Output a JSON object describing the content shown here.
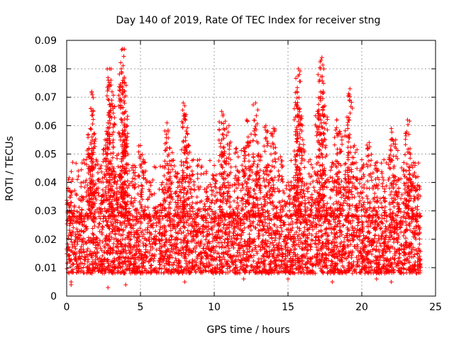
{
  "chart_data": {
    "type": "scatter",
    "title": "Day 140 of 2019, Rate Of TEC Index for receiver stng",
    "xlabel": "GPS time / hours",
    "ylabel": "ROTI / TECUs",
    "xlim": [
      0,
      25
    ],
    "ylim": [
      0,
      0.09
    ],
    "x_ticks": [
      0,
      5,
      10,
      15,
      20,
      25
    ],
    "x_tick_labels": [
      "0",
      "5",
      "10",
      "15",
      "20",
      "25"
    ],
    "y_ticks": [
      0,
      0.01,
      0.02,
      0.03,
      0.04,
      0.05,
      0.06,
      0.07,
      0.08,
      0.09
    ],
    "y_tick_labels": [
      "0",
      "0.01",
      "0.02",
      "0.03",
      "0.04",
      "0.05",
      "0.06",
      "0.07",
      "0.08",
      "0.09"
    ],
    "grid": true,
    "marker": "+",
    "marker_color": "#ff0000",
    "data_x_range_hours": [
      0,
      24
    ],
    "bulk_range": [
      0.008,
      0.028
    ],
    "series": [
      {
        "name": "ROTI",
        "points": [
          [
            0.1,
            0.038
          ],
          [
            0.2,
            0.037
          ],
          [
            0.3,
            0.005
          ],
          [
            0.5,
            0.03
          ],
          [
            1.0,
            0.035
          ],
          [
            1.5,
            0.052
          ],
          [
            1.6,
            0.059
          ],
          [
            1.7,
            0.072
          ],
          [
            1.8,
            0.065
          ],
          [
            2.0,
            0.048
          ],
          [
            2.3,
            0.045
          ],
          [
            2.6,
            0.055
          ],
          [
            2.8,
            0.061
          ],
          [
            2.9,
            0.08
          ],
          [
            3.0,
            0.076
          ],
          [
            3.1,
            0.067
          ],
          [
            3.3,
            0.042
          ],
          [
            3.5,
            0.05
          ],
          [
            3.7,
            0.08
          ],
          [
            3.8,
            0.087
          ],
          [
            3.9,
            0.077
          ],
          [
            4.0,
            0.065
          ],
          [
            4.1,
            0.06
          ],
          [
            4.0,
            0.004
          ],
          [
            4.5,
            0.046
          ],
          [
            5.0,
            0.053
          ],
          [
            5.2,
            0.048
          ],
          [
            5.5,
            0.028
          ],
          [
            6.0,
            0.03
          ],
          [
            6.5,
            0.04
          ],
          [
            6.8,
            0.061
          ],
          [
            7.0,
            0.052
          ],
          [
            7.5,
            0.043
          ],
          [
            7.9,
            0.068
          ],
          [
            8.0,
            0.067
          ],
          [
            8.2,
            0.057
          ],
          [
            8.5,
            0.044
          ],
          [
            9.0,
            0.048
          ],
          [
            9.5,
            0.038
          ],
          [
            10.0,
            0.046
          ],
          [
            10.5,
            0.065
          ],
          [
            10.6,
            0.064
          ],
          [
            11.0,
            0.06
          ],
          [
            11.5,
            0.052
          ],
          [
            12.0,
            0.052
          ],
          [
            12.2,
            0.062
          ],
          [
            12.5,
            0.057
          ],
          [
            12.8,
            0.068
          ],
          [
            13.0,
            0.05
          ],
          [
            13.5,
            0.06
          ],
          [
            13.7,
            0.046
          ],
          [
            14.0,
            0.059
          ],
          [
            14.5,
            0.049
          ],
          [
            15.0,
            0.04
          ],
          [
            15.5,
            0.063
          ],
          [
            15.6,
            0.072
          ],
          [
            15.7,
            0.08
          ],
          [
            15.8,
            0.066
          ],
          [
            16.0,
            0.055
          ],
          [
            16.5,
            0.048
          ],
          [
            17.0,
            0.065
          ],
          [
            17.2,
            0.08
          ],
          [
            17.3,
            0.084
          ],
          [
            17.5,
            0.067
          ],
          [
            18.0,
            0.047
          ],
          [
            18.3,
            0.062
          ],
          [
            18.5,
            0.058
          ],
          [
            19.0,
            0.063
          ],
          [
            19.2,
            0.073
          ],
          [
            19.5,
            0.053
          ],
          [
            20.0,
            0.048
          ],
          [
            20.5,
            0.054
          ],
          [
            21.0,
            0.045
          ],
          [
            21.5,
            0.048
          ],
          [
            22.0,
            0.059
          ],
          [
            22.3,
            0.055
          ],
          [
            22.5,
            0.038
          ],
          [
            23.0,
            0.044
          ],
          [
            23.1,
            0.062
          ],
          [
            23.3,
            0.05
          ],
          [
            23.5,
            0.047
          ],
          [
            23.8,
            0.042
          ],
          [
            22.0,
            0.005
          ],
          [
            21.0,
            0.006
          ],
          [
            18.0,
            0.005
          ],
          [
            15.0,
            0.006
          ],
          [
            12.0,
            0.006
          ],
          [
            8.0,
            0.005
          ],
          [
            2.8,
            0.003
          ],
          [
            0.3,
            0.004
          ]
        ]
      }
    ]
  }
}
